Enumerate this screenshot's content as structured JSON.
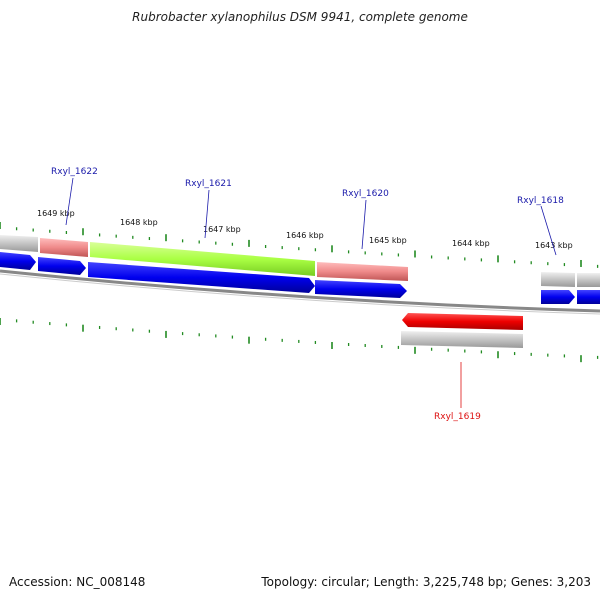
{
  "title": "Rubrobacter xylanophilus DSM 9941, complete genome",
  "footer": {
    "accession": "Accession: NC_008148",
    "summary": "Topology: circular; Length: 3,225,748 bp; Genes: 3,203"
  },
  "kbp_labels": [
    "1649 kbp",
    "1648 kbp",
    "1647 kbp",
    "1646 kbp",
    "1645 kbp",
    "1644 kbp",
    "1643 kbp"
  ],
  "gene_labels": [
    {
      "text": "Rxyl_1622",
      "strand": "forward"
    },
    {
      "text": "Rxyl_1621",
      "strand": "forward"
    },
    {
      "text": "Rxyl_1620",
      "strand": "forward"
    },
    {
      "text": "Rxyl_1618",
      "strand": "forward"
    },
    {
      "text": "Rxyl_1619",
      "strand": "reverse"
    }
  ],
  "colors": {
    "forward_gene": "#0000ee",
    "reverse_gene": "#ee0000",
    "forward_label": "#1a1aaa",
    "reverse_label": "#dd1111",
    "tick": "#228b22",
    "backbone": "#888888",
    "feature_gray": "#c4c4c4",
    "feature_pink": "#ef8a8a",
    "feature_green": "#aaff44"
  }
}
